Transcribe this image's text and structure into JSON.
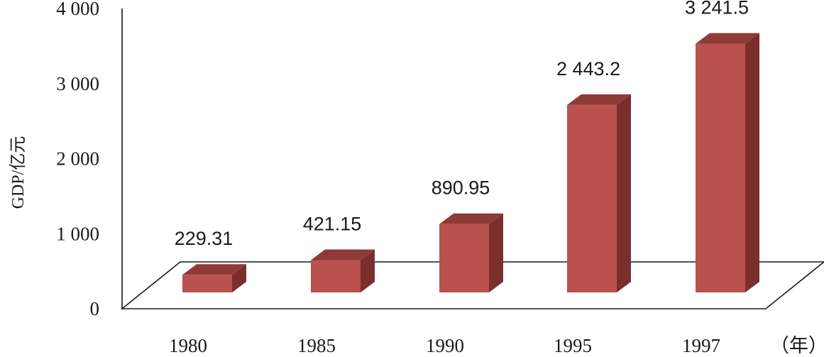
{
  "chart_data": {
    "type": "bar",
    "categories": [
      "1980",
      "1985",
      "1990",
      "1995",
      "1997"
    ],
    "values": [
      229.31,
      421.15,
      890.95,
      2443.2,
      3241.5
    ],
    "data_labels": [
      "229.31",
      "421.15",
      "890.95",
      "2 443.2",
      "3 241.5"
    ],
    "ylabel": "GDP/亿元",
    "xlabel": "（年）",
    "ylim": [
      0,
      4000
    ],
    "yticks": [
      0,
      1000,
      2000,
      3000,
      4000
    ],
    "ytick_labels": [
      "0",
      "1 000",
      "2 000",
      "3 000",
      "4 000"
    ],
    "bar_color": "#b9514e",
    "bar_side_color": "#7a2f2c",
    "bar_top_color": "#8f3a37",
    "grid": false,
    "style": "3d-column"
  }
}
